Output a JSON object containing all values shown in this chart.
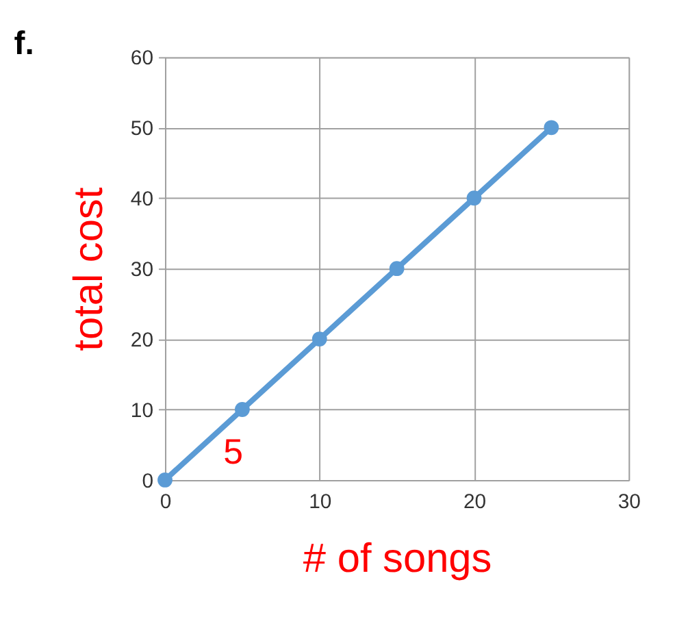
{
  "chart_data": {
    "type": "line",
    "title": "f.",
    "xlabel": "# of songs",
    "ylabel": "total cost",
    "x": [
      0,
      5,
      10,
      15,
      20,
      25
    ],
    "series": [
      {
        "color": "#5b9bd5",
        "values": [
          0,
          10,
          20,
          30,
          40,
          50
        ]
      }
    ],
    "xlim": [
      0,
      30
    ],
    "xticks": [
      0,
      10,
      20,
      30
    ],
    "ylim": [
      0,
      60
    ],
    "yticks": [
      0,
      10,
      20,
      30,
      40,
      50,
      60
    ],
    "grid": true,
    "marker": "circle",
    "line_style": "solid",
    "annotations": [
      "5"
    ]
  }
}
